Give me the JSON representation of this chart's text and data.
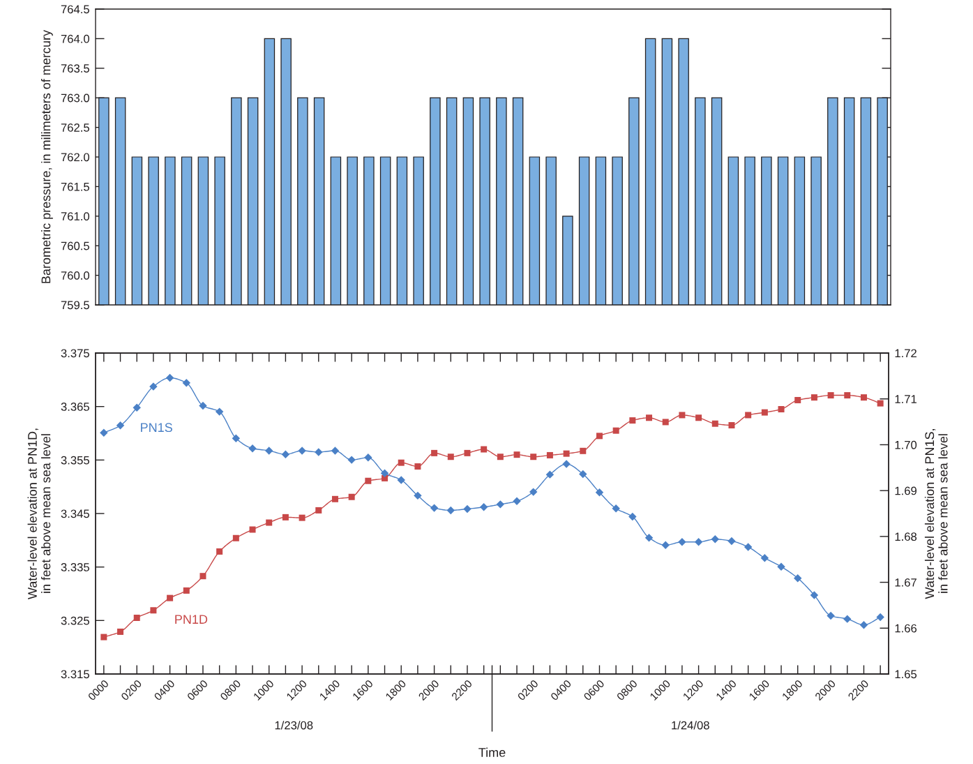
{
  "chart_data": [
    {
      "type": "bar",
      "ylabel": "Barometric pressure, in milimeters of mercury",
      "categories": [
        "0000",
        null,
        "0200",
        null,
        "0400",
        null,
        "0600",
        null,
        "0800",
        null,
        "1000",
        null,
        "1200",
        null,
        "1400",
        null,
        "1600",
        null,
        "1800",
        null,
        "2000",
        null,
        "2200",
        null,
        null,
        null,
        "0200",
        null,
        "0400",
        null,
        "0600",
        null,
        "0800",
        null,
        "1000",
        null,
        "1200",
        null,
        "1400",
        null,
        "1600",
        null,
        "1800",
        null,
        "2000",
        null,
        "2200",
        null
      ],
      "values": [
        763,
        763,
        762,
        762,
        762,
        762,
        762,
        762,
        763,
        763,
        764,
        764,
        763,
        763,
        762,
        762,
        762,
        762,
        762,
        762,
        763,
        763,
        763,
        763,
        763,
        763,
        762,
        762,
        761,
        762,
        762,
        762,
        763,
        764,
        764,
        764,
        763,
        763,
        762,
        762,
        762,
        762,
        762,
        762,
        763,
        763,
        763,
        763
      ],
      "color": "#7aaee0",
      "ylim": [
        759.5,
        764.5
      ],
      "yticks": [
        759.5,
        {
          "value": 760,
          "label": "760.0"
        },
        760.5,
        {
          "value": 761,
          "label": "761.0"
        },
        761.5,
        {
          "value": 762,
          "label": "762.0"
        },
        762.5,
        {
          "value": 763,
          "label": "763.0"
        },
        763.5,
        {
          "value": 764,
          "label": "764.0"
        },
        764.5
      ],
      "tick_labels": "y"
    },
    {
      "type": "line",
      "xlabel": "Time",
      "ylabel": "Water-level elevation at PN1D,\nin feet above mean sea level",
      "y2label": "Water-level elevation at PN1S,\nin feet above mean sea level",
      "categories": [
        "0000",
        null,
        "0200",
        null,
        "0400",
        null,
        "0600",
        null,
        "0800",
        null,
        "1000",
        null,
        "1200",
        null,
        "1400",
        null,
        "1600",
        null,
        "1800",
        null,
        "2000",
        null,
        "2200",
        null,
        null,
        null,
        "0200",
        null,
        "0400",
        null,
        "0600",
        null,
        "0800",
        null,
        "1000",
        null,
        "1200",
        null,
        "1400",
        null,
        "1600",
        null,
        "1800",
        null,
        "2000",
        null,
        "2200",
        null
      ],
      "series": [
        {
          "name": "PN1D",
          "color": "#c84848",
          "marker": "square",
          "line_style": "solid",
          "values": [
            3.3219,
            3.3229,
            3.3255,
            3.3269,
            3.3292,
            3.3306,
            3.3333,
            3.3379,
            3.3404,
            3.342,
            3.3433,
            3.3443,
            3.3442,
            3.3456,
            3.3477,
            3.3481,
            3.3511,
            3.3516,
            3.3545,
            3.3538,
            3.3563,
            3.3556,
            3.3563,
            3.357,
            3.3556,
            3.356,
            3.3556,
            3.3559,
            3.3562,
            3.3567,
            3.3595,
            3.3605,
            3.3624,
            3.3629,
            3.3621,
            3.3634,
            3.3629,
            3.3618,
            3.3615,
            3.3634,
            3.3639,
            3.3645,
            3.3662,
            3.3667,
            3.3671,
            3.3671,
            3.3667,
            3.3656
          ]
        },
        {
          "name": "PN1S",
          "color": "#4a80c6",
          "marker": "diamond",
          "line_style": "solid",
          "axis": "y2",
          "values": [
            1.7026,
            1.7042,
            1.7081,
            1.7127,
            1.7146,
            1.7135,
            1.7085,
            1.7072,
            1.7014,
            1.6992,
            1.6987,
            1.6979,
            1.6987,
            1.6984,
            1.6987,
            1.6967,
            1.6972,
            1.6938,
            1.6923,
            1.6889,
            1.6862,
            1.6857,
            1.686,
            1.6864,
            1.687,
            1.6877,
            1.6897,
            1.6935,
            1.6958,
            1.6936,
            1.6896,
            1.6861,
            1.6843,
            1.6797,
            1.6781,
            1.6788,
            1.6788,
            1.6794,
            1.679,
            1.6777,
            1.6753,
            1.6734,
            1.6709,
            1.6672,
            1.6627,
            1.662,
            1.6607,
            1.6624
          ]
        }
      ],
      "ylim": [
        3.315,
        3.375
      ],
      "yticks": [
        3.315,
        3.325,
        3.335,
        3.345,
        3.355,
        3.365,
        3.375
      ],
      "y2lim": [
        1.65,
        1.72
      ],
      "y2ticks": [
        1.65,
        1.66,
        1.67,
        1.68,
        1.69,
        {
          "value": 1.7,
          "label": "1.70"
        },
        1.71,
        1.72
      ],
      "annotations": [
        "1/23/08",
        "1/24/08"
      ]
    }
  ]
}
